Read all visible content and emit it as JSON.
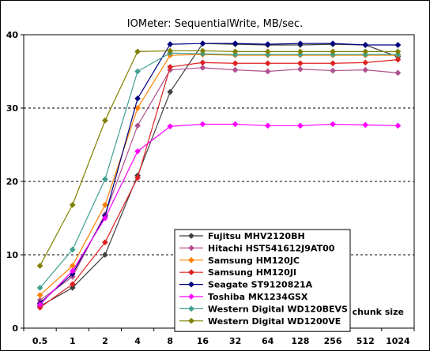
{
  "chart_data": {
    "type": "line",
    "title": "IOMeter: SequentialWrite, MB/sec.",
    "xlabel": "chunk size",
    "ylabel": "",
    "categories": [
      "0.5",
      "1",
      "2",
      "4",
      "8",
      "16",
      "32",
      "64",
      "128",
      "256",
      "512",
      "1024"
    ],
    "ylim": [
      0,
      40
    ],
    "yticks": [
      0,
      10,
      20,
      30,
      40
    ],
    "grid": "horizontal-dashed",
    "legend_position": "bottom-center",
    "series": [
      {
        "name": "Fujitsu MHV2120BH",
        "color": "#404040",
        "marker": "diamond",
        "values": [
          3.0,
          5.5,
          10.0,
          20.8,
          32.2,
          38.8,
          38.7,
          38.6,
          38.6,
          38.7,
          38.6,
          37.0
        ]
      },
      {
        "name": "Hitachi HST541612J9AT00",
        "color": "#b0508e",
        "marker": "diamond",
        "values": [
          3.8,
          7.0,
          15.5,
          27.6,
          35.2,
          35.5,
          35.2,
          35.0,
          35.3,
          35.1,
          35.2,
          34.8
        ]
      },
      {
        "name": "Samsung HM120JC",
        "color": "#ff8000",
        "marker": "diamond",
        "values": [
          4.5,
          8.5,
          16.8,
          30.0,
          37.2,
          37.3,
          37.2,
          37.2,
          37.2,
          37.2,
          37.2,
          37.2
        ]
      },
      {
        "name": "Samsung HM120JI",
        "color": "#e02020",
        "marker": "diamond",
        "values": [
          2.8,
          6.0,
          11.7,
          20.5,
          35.6,
          36.2,
          36.1,
          36.1,
          36.1,
          36.1,
          36.2,
          36.6
        ]
      },
      {
        "name": "Seagate ST9120821A",
        "color": "#000080",
        "marker": "diamond",
        "values": [
          3.4,
          7.4,
          15.3,
          31.3,
          38.7,
          38.8,
          38.8,
          38.7,
          38.8,
          38.8,
          38.6,
          38.6
        ]
      },
      {
        "name": "Toshiba MK1234GSX",
        "color": "#ff00ff",
        "marker": "diamond",
        "values": [
          3.2,
          7.8,
          15.0,
          24.1,
          27.5,
          27.8,
          27.8,
          27.6,
          27.6,
          27.8,
          27.7,
          27.6
        ]
      },
      {
        "name": "Western Digital WD120BEVS",
        "color": "#40a090",
        "marker": "diamond",
        "values": [
          5.5,
          10.7,
          20.3,
          35.0,
          37.5,
          37.4,
          37.3,
          37.3,
          37.3,
          37.3,
          37.3,
          37.3
        ]
      },
      {
        "name": "Western Digital WD1200VE",
        "color": "#808000",
        "marker": "diamond",
        "values": [
          8.5,
          16.8,
          28.3,
          37.7,
          37.8,
          37.8,
          37.7,
          37.7,
          37.7,
          37.7,
          37.7,
          37.7
        ]
      }
    ]
  }
}
